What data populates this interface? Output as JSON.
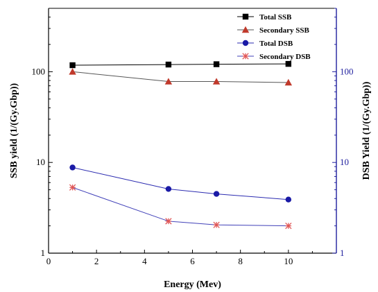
{
  "chart_data": {
    "type": "line",
    "title": "",
    "xlabel": "Energy (Mev)",
    "ylabel_left": "SSB yield (1/(Gy.Gbp))",
    "ylabel_right": "DSB Yield (1/(Gy.Gbp))",
    "xlim": [
      0,
      12
    ],
    "ylim": [
      1,
      500
    ],
    "y_scale": "log",
    "x_ticks": [
      "0",
      "2",
      "4",
      "6",
      "8",
      "10"
    ],
    "y_ticks_left": [
      "1",
      "10",
      "100"
    ],
    "y_ticks_right": [
      "1",
      "10",
      "100"
    ],
    "legend_position": "top-right",
    "left_axis_color": "#000000",
    "right_axis_color": "#1f1f9e",
    "series": [
      {
        "name": "Total SSB",
        "x": [
          1,
          5,
          7,
          10
        ],
        "y": [
          118,
          120,
          121,
          122
        ],
        "color": "#000000",
        "marker": "square",
        "line_color": "#000000"
      },
      {
        "name": "Secondary SSB",
        "x": [
          1,
          5,
          7,
          10
        ],
        "y": [
          100,
          78,
          78,
          76
        ],
        "color": "#c0392b",
        "marker": "triangle",
        "line_color": "#555555"
      },
      {
        "name": "Total DSB",
        "x": [
          1,
          5,
          7,
          10
        ],
        "y": [
          8.8,
          5.1,
          4.5,
          3.9
        ],
        "color": "#1a1aa6",
        "marker": "circle",
        "line_color": "#2a2ab0"
      },
      {
        "name": "Secondary DSB",
        "x": [
          1,
          5,
          7,
          10
        ],
        "y": [
          5.3,
          2.25,
          2.05,
          2.0
        ],
        "color": "#e05555",
        "marker": "star",
        "line_color": "#4040b8"
      }
    ]
  }
}
